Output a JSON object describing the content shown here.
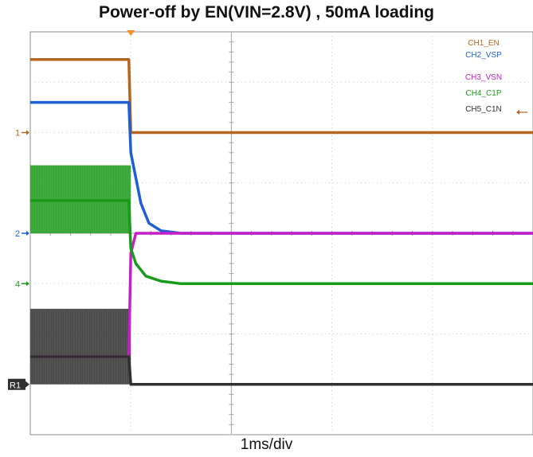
{
  "chart_data": {
    "type": "line",
    "title": "Power-off by EN(VIN=2.8V) , 50mA loading",
    "xlabel": "1ms/div",
    "ylabel": "",
    "grid": true,
    "legend_position": "top-right",
    "x_unit": "ms",
    "xlim": [
      0,
      5.0
    ],
    "ylim": [
      0,
      8
    ],
    "trigger_time": 1.0,
    "channel_markers": [
      {
        "label": "1",
        "color": "#b5651d",
        "level": 6.0
      },
      {
        "label": "2",
        "color": "#1f5fd6",
        "level": 4.0
      },
      {
        "label": "4",
        "color": "#1a9a1a",
        "level": 3.0
      },
      {
        "label": "R1",
        "color": "#303030",
        "level": 1.0
      }
    ],
    "series": [
      {
        "name": "CH1_EN",
        "color": "#b5651d",
        "x": [
          0,
          0.98,
          1.0,
          5.0
        ],
        "y": [
          7.45,
          7.45,
          6.0,
          6.0
        ]
      },
      {
        "name": "CH2_VSP",
        "color": "#1f5fd6",
        "x": [
          0,
          0.98,
          1.0,
          1.05,
          1.1,
          1.18,
          1.3,
          1.5,
          5.0
        ],
        "y": [
          6.6,
          6.6,
          5.6,
          5.1,
          4.6,
          4.2,
          4.05,
          4.0,
          4.0
        ]
      },
      {
        "name": "CH3_VSN",
        "color": "#c71fc7",
        "x": [
          0,
          0.98,
          1.0,
          1.05,
          1.3,
          5.0
        ],
        "y": [
          1.55,
          1.55,
          3.6,
          4.0,
          4.0,
          4.0
        ]
      },
      {
        "name": "CH4_C1P",
        "color": "#1a9a1a",
        "x": [
          0,
          0.98,
          1.0,
          1.05,
          1.15,
          1.3,
          1.5,
          5.0
        ],
        "y": [
          4.65,
          4.65,
          3.7,
          3.4,
          3.15,
          3.05,
          3.0,
          3.0
        ],
        "band_before_trigger": [
          4.0,
          5.35
        ]
      },
      {
        "name": "CH5_C1N",
        "color": "#303030",
        "x": [
          0,
          0.98,
          1.0,
          5.0
        ],
        "y": [
          1.55,
          1.55,
          1.0,
          1.0
        ],
        "band_before_trigger": [
          1.0,
          2.5
        ]
      }
    ]
  }
}
